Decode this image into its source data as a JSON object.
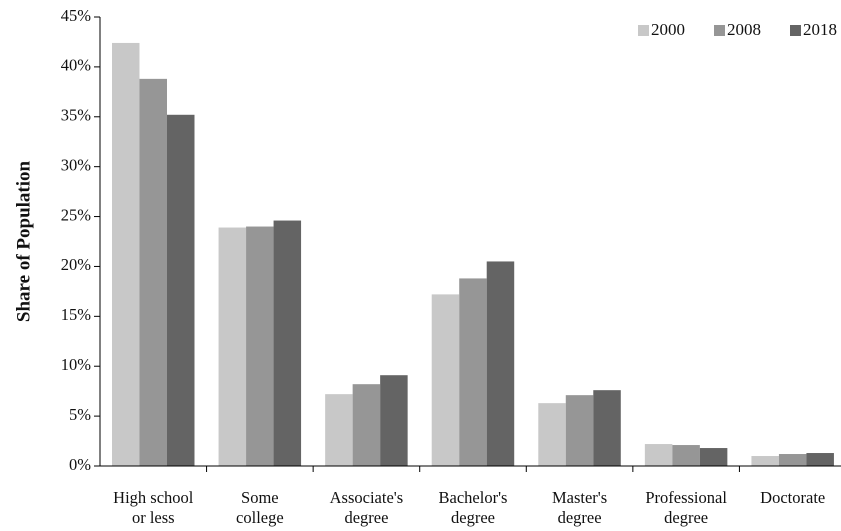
{
  "chart_data": {
    "type": "bar",
    "title": "",
    "xlabel": "",
    "ylabel": "Share of  Population",
    "ylim": [
      0,
      45
    ],
    "y_tick_step": 5,
    "y_tick_format": "percent",
    "grid": false,
    "legend_position": "top-right",
    "categories": [
      [
        "High school",
        "or less"
      ],
      [
        "Some",
        "college"
      ],
      [
        "Associate's",
        "degree"
      ],
      [
        "Bachelor's",
        "degree"
      ],
      [
        "Master's",
        "degree"
      ],
      [
        "Professional",
        "degree"
      ],
      [
        "Doctorate"
      ]
    ],
    "series": [
      {
        "name": "2000",
        "color": "#c8c8c8",
        "values": [
          42.4,
          23.9,
          7.2,
          17.2,
          6.3,
          2.2,
          1.0
        ]
      },
      {
        "name": "2008",
        "color": "#969696",
        "values": [
          38.8,
          24.0,
          8.2,
          18.8,
          7.1,
          2.1,
          1.2
        ]
      },
      {
        "name": "2018",
        "color": "#646464",
        "values": [
          35.2,
          24.6,
          9.1,
          20.5,
          7.6,
          1.8,
          1.3
        ]
      }
    ]
  }
}
